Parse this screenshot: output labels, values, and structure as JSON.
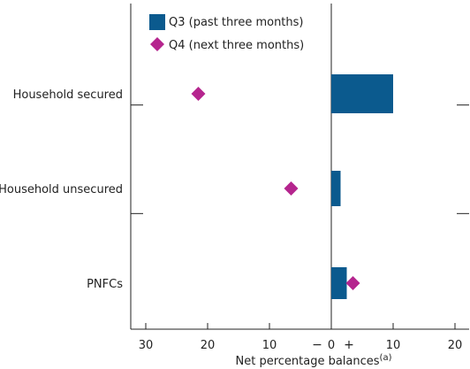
{
  "chart_data": {
    "type": "bar",
    "orientation": "horizontal",
    "categories": [
      "Household secured",
      "Household unsecured",
      "PNFCs"
    ],
    "series": [
      {
        "name": "Q3 (past three months)",
        "marker": "bar",
        "color": "#0b5a8e",
        "values": [
          10,
          1.5,
          2.5
        ]
      },
      {
        "name": "Q4 (next three months)",
        "marker": "diamond",
        "color": "#b5258e",
        "values": [
          -21.5,
          -6.5,
          3.5
        ]
      }
    ],
    "xlabel": "Net percentage balances",
    "xlabel_note": "(a)",
    "xlim": [
      -33,
      22
    ],
    "x_ticks": [
      -30,
      -20,
      -10,
      0,
      10,
      20
    ],
    "x_tick_labels": [
      "30",
      "20",
      "10",
      "0",
      "10",
      "20"
    ],
    "sign_left": "−",
    "sign_right": "+",
    "legend_position": "top-left",
    "grid": false
  }
}
